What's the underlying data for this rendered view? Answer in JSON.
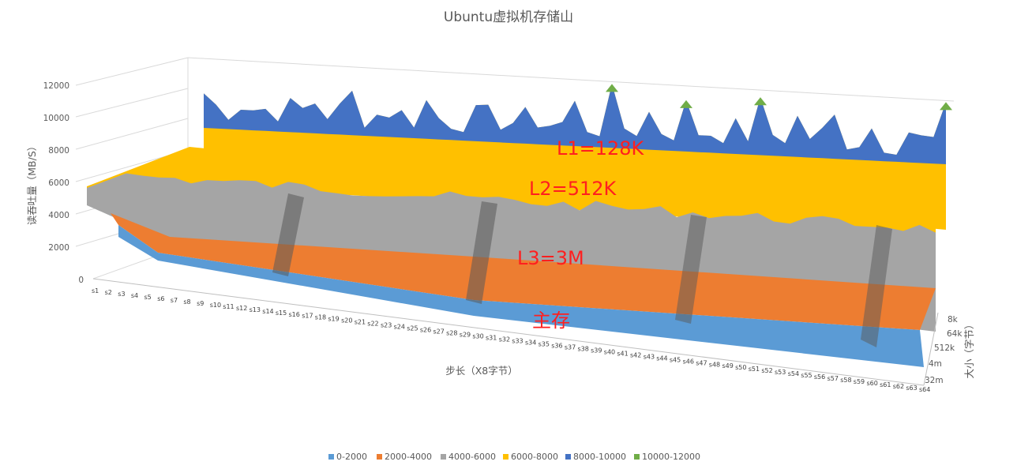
{
  "colors": {
    "band_0_2000": "#5b9bd5",
    "band_2000_4000": "#ed7d31",
    "band_4000_6000": "#a5a5a5",
    "band_6000_8000": "#ffc000",
    "band_8000_10000": "#4472c4",
    "band_10000_12000": "#70ad47",
    "annotation": "#ff1f1f"
  },
  "chart_data": {
    "type": "surface",
    "title": "Ubuntu虚拟机存储山",
    "zlabel": "读吞吐量（MB/S）",
    "xlabel": "步长（X8字节）",
    "ylabel": "大小（字节）",
    "zlim": [
      0,
      12000
    ],
    "z_ticks": [
      "0",
      "2000",
      "4000",
      "6000",
      "8000",
      "10000",
      "12000"
    ],
    "x_categories": [
      "s1",
      "s2",
      "s3",
      "s4",
      "s5",
      "s6",
      "s7",
      "s8",
      "s9",
      "s10",
      "s11",
      "s12",
      "s13",
      "s14",
      "s15",
      "s16",
      "s17",
      "s18",
      "s19",
      "s20",
      "s21",
      "s22",
      "s23",
      "s24",
      "s25",
      "s26",
      "s27",
      "s28",
      "s29",
      "s30",
      "s31",
      "s32",
      "s33",
      "s34",
      "s35",
      "s36",
      "s37",
      "s38",
      "s39",
      "s40",
      "s41",
      "s42",
      "s43",
      "s44",
      "s45",
      "s46",
      "s47",
      "s48",
      "s49",
      "s50",
      "s51",
      "s52",
      "s53",
      "s54",
      "s55",
      "s56",
      "s57",
      "s58",
      "s59",
      "s60",
      "s61",
      "s62",
      "s63",
      "s64"
    ],
    "y_categories": [
      "8k",
      "64k",
      "512k",
      "4m",
      "32m"
    ],
    "legend": [
      "0-2000",
      "2000-4000",
      "4000-6000",
      "6000-8000",
      "8000-10000",
      "10000-12000"
    ],
    "legend_position": "bottom",
    "gridlines": true,
    "series": [
      {
        "name": "8k",
        "level": 9000,
        "approx_range": [
          7500,
          12000
        ]
      },
      {
        "name": "64k",
        "level": 6200,
        "approx_range": [
          5500,
          6800
        ]
      },
      {
        "name": "512k",
        "level": 5000,
        "approx_range": [
          3000,
          6000
        ]
      },
      {
        "name": "4m",
        "level": 4300,
        "approx_range": [
          2000,
          6000
        ]
      },
      {
        "name": "32m",
        "level": 1200,
        "approx_range": [
          500,
          2000
        ]
      }
    ],
    "annotations": [
      "L1=128K",
      "L2=512K",
      "L3=3M",
      "主存"
    ]
  }
}
